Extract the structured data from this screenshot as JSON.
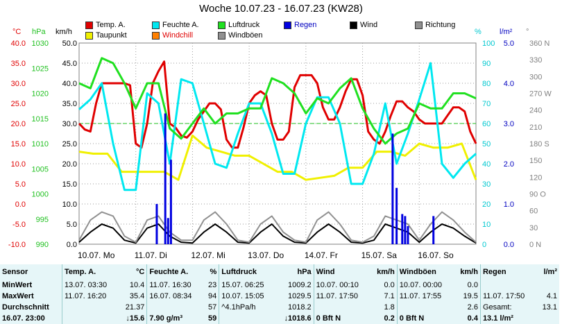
{
  "title": "Woche 10.07.23 - 16.07.23 (KW28)",
  "legend": [
    {
      "label": "Temp. A.",
      "color": "#e00000"
    },
    {
      "label": "Taupunkt",
      "color": "#f0f000"
    },
    {
      "label": "Feuchte A.",
      "color": "#00e8f0"
    },
    {
      "label": "Windchill",
      "color": "#ff8000"
    },
    {
      "label": "Luftdruck",
      "color": "#20e020"
    },
    {
      "label": "Windböen",
      "color": "#909090"
    },
    {
      "label": "Regen",
      "color": "#0000e0"
    },
    {
      "label": "Wind",
      "color": "#000000"
    },
    {
      "label": "Richtung",
      "color": "#909090"
    }
  ],
  "units": {
    "temp": "°C",
    "pressure": "hPa",
    "wind": "km/h",
    "humidity": "%",
    "rain": "l/m²",
    "direction": "°"
  },
  "chart_data": {
    "type": "line",
    "title": "Woche 10.07.23 - 16.07.23 (KW28)",
    "x_ticks": [
      "10.07.",
      "11.07.",
      "12.07.",
      "13.07.",
      "14.07.",
      "15.07.",
      "16.07."
    ],
    "x_day_labels": [
      "Mo",
      "Di",
      "Mi",
      "Do",
      "Fr",
      "Sa",
      "So"
    ],
    "axes": {
      "temp": {
        "label": "°C",
        "ticks": [
          "40.0",
          "35.0",
          "30.0",
          "25.0",
          "20.0",
          "15.0",
          "10.0",
          "5.0",
          "0.0",
          "-5.0",
          "-10.0"
        ],
        "range": [
          -10,
          40
        ]
      },
      "pressure": {
        "label": "hPa",
        "ticks": [
          "1030",
          "1025",
          "1020",
          "1015",
          "1010",
          "1005",
          "1000",
          "995",
          "990"
        ],
        "range": [
          990,
          1030
        ]
      },
      "wind": {
        "label": "km/h",
        "ticks": [
          "50.0",
          "45.0",
          "40.0",
          "35.0",
          "30.0",
          "25.0",
          "20.0",
          "15.0",
          "10.0",
          "5.0",
          "0.0"
        ],
        "range": [
          0,
          50
        ]
      },
      "humidity": {
        "label": "%",
        "ticks": [
          "100",
          "90",
          "80",
          "70",
          "60",
          "50",
          "40",
          "30",
          "20",
          "10",
          "0"
        ],
        "range": [
          0,
          100
        ]
      },
      "rain": {
        "label": "l/m²",
        "ticks": [
          "5.0",
          "4.0",
          "3.0",
          "2.0",
          "1.0",
          "0.0"
        ],
        "range": [
          0,
          5
        ]
      },
      "direction": {
        "label": "°",
        "ticks": [
          "360 N",
          "330",
          "300",
          "270 W",
          "240",
          "210",
          "180 S",
          "150",
          "120",
          "90 O",
          "60",
          "30",
          "0 N"
        ],
        "range": [
          0,
          360
        ]
      }
    },
    "reference_line_temp": 20,
    "series": [
      {
        "name": "Temp. A.",
        "color": "#e00000",
        "axis": "temp",
        "x": [
          0,
          0.1,
          0.2,
          0.3,
          0.4,
          0.5,
          0.6,
          0.7,
          0.8,
          0.9,
          1.0,
          1.1,
          1.2,
          1.3,
          1.4,
          1.5,
          1.6,
          1.7,
          1.8,
          1.9,
          2.0,
          2.1,
          2.2,
          2.3,
          2.4,
          2.5,
          2.6,
          2.7,
          2.8,
          2.9,
          3.0,
          3.1,
          3.2,
          3.3,
          3.4,
          3.5,
          3.6,
          3.7,
          3.8,
          3.9,
          4.0,
          4.1,
          4.2,
          4.3,
          4.4,
          4.5,
          4.6,
          4.7,
          4.8,
          4.9,
          5.0,
          5.1,
          5.2,
          5.3,
          5.4,
          5.5,
          5.6,
          5.7,
          5.8,
          5.9,
          6.0,
          6.1,
          6.2,
          6.3,
          6.4,
          6.5,
          6.6,
          6.7,
          6.8,
          6.9,
          7.0
        ],
        "values": [
          20,
          18.5,
          18,
          25,
          30,
          30,
          30,
          30,
          30,
          29.5,
          15,
          14,
          20,
          30,
          33,
          35.4,
          20,
          19,
          17,
          16.5,
          18,
          21,
          23,
          25,
          25,
          23.5,
          16,
          14,
          14,
          19,
          25,
          27,
          28,
          27,
          20,
          16,
          16,
          18,
          29,
          32,
          32,
          32,
          30,
          24,
          21,
          21,
          24,
          28,
          31,
          31,
          27,
          18,
          16,
          15,
          18,
          22,
          25.5,
          25.5,
          24,
          23,
          21,
          20,
          20,
          20,
          20,
          22,
          24,
          24,
          23,
          18,
          15
        ]
      },
      {
        "name": "Taupunkt",
        "color": "#f0f000",
        "axis": "temp",
        "x": [
          0,
          0.25,
          0.5,
          0.75,
          1.0,
          1.25,
          1.5,
          1.75,
          2.0,
          2.25,
          2.5,
          2.75,
          3.0,
          3.25,
          3.5,
          3.75,
          4.0,
          4.25,
          4.5,
          4.75,
          5.0,
          5.25,
          5.5,
          5.75,
          6.0,
          6.25,
          6.5,
          6.75,
          7.0
        ],
        "values": [
          13,
          12.5,
          12.5,
          8,
          8,
          8,
          8,
          6,
          17,
          14,
          13,
          12,
          12,
          10,
          8,
          8,
          6,
          6.5,
          7,
          9,
          9,
          13,
          13,
          12,
          15,
          14,
          14,
          15,
          6
        ]
      },
      {
        "name": "Feuchte A.",
        "color": "#00e8f0",
        "axis": "humidity",
        "x": [
          0,
          0.2,
          0.4,
          0.6,
          0.8,
          1.0,
          1.2,
          1.4,
          1.6,
          1.8,
          2.0,
          2.2,
          2.4,
          2.6,
          2.8,
          3.0,
          3.2,
          3.4,
          3.6,
          3.8,
          4.0,
          4.2,
          4.4,
          4.6,
          4.8,
          5.0,
          5.2,
          5.4,
          5.6,
          5.8,
          6.0,
          6.2,
          6.4,
          6.6,
          6.8,
          7.0
        ],
        "values": [
          67,
          72,
          80,
          50,
          27,
          27,
          75,
          70,
          40,
          82,
          80,
          60,
          40,
          38,
          55,
          70,
          70,
          55,
          35,
          35,
          60,
          73,
          73,
          60,
          30,
          30,
          45,
          70,
          40,
          55,
          72,
          90,
          40,
          33,
          40,
          45
        ]
      },
      {
        "name": "Luftdruck",
        "color": "#20e020",
        "axis": "pressure",
        "x": [
          0,
          0.2,
          0.4,
          0.6,
          0.8,
          1.0,
          1.2,
          1.4,
          1.6,
          1.8,
          2.0,
          2.2,
          2.4,
          2.6,
          2.8,
          3.0,
          3.2,
          3.4,
          3.6,
          3.8,
          4.0,
          4.2,
          4.4,
          4.6,
          4.8,
          5.0,
          5.2,
          5.4,
          5.6,
          5.8,
          6.0,
          6.2,
          6.4,
          6.6,
          6.8,
          7.0
        ],
        "values": [
          1022,
          1021,
          1027,
          1026,
          1022,
          1017,
          1022,
          1022,
          1013,
          1011,
          1014,
          1017,
          1014,
          1016,
          1016,
          1017,
          1017,
          1023,
          1022,
          1020,
          1016,
          1019,
          1018,
          1021,
          1023,
          1017,
          1013,
          1010,
          1012,
          1013,
          1018,
          1017,
          1017,
          1020,
          1020,
          1019
        ]
      },
      {
        "name": "Wind",
        "color": "#000000",
        "axis": "wind",
        "x": [
          0,
          0.2,
          0.4,
          0.6,
          0.8,
          1.0,
          1.2,
          1.4,
          1.6,
          1.8,
          2.0,
          2.2,
          2.4,
          2.6,
          2.8,
          3.0,
          3.2,
          3.4,
          3.6,
          3.8,
          4.0,
          4.2,
          4.4,
          4.6,
          4.8,
          5.0,
          5.2,
          5.4,
          5.6,
          5.8,
          6.0,
          6.2,
          6.4,
          6.6,
          6.8,
          7.0
        ],
        "values": [
          0.5,
          3,
          5,
          4,
          1,
          0.3,
          4,
          5,
          2,
          0.5,
          0.3,
          3,
          5,
          3,
          0.5,
          0.3,
          3,
          5,
          2,
          0.5,
          0.3,
          3,
          5,
          3,
          0.5,
          0.3,
          1,
          5,
          4,
          3,
          0.5,
          3,
          5,
          4,
          2,
          0.3
        ]
      },
      {
        "name": "Windböen",
        "color": "#909090",
        "axis": "wind",
        "x": [
          0,
          0.2,
          0.4,
          0.6,
          0.8,
          1.0,
          1.2,
          1.4,
          1.6,
          1.8,
          2.0,
          2.2,
          2.4,
          2.6,
          2.8,
          3.0,
          3.2,
          3.4,
          3.6,
          3.8,
          4.0,
          4.2,
          4.4,
          4.6,
          4.8,
          5.0,
          5.2,
          5.4,
          5.6,
          5.8,
          6.0,
          6.2,
          6.4,
          6.6,
          6.8,
          7.0
        ],
        "values": [
          1,
          6,
          8,
          7,
          2,
          0.5,
          6,
          7,
          3,
          1,
          1,
          6,
          8,
          5,
          1,
          0.5,
          5,
          7,
          3,
          1,
          0.5,
          6,
          8,
          5,
          1,
          0.5,
          2,
          7,
          6,
          5,
          1,
          5,
          8,
          6,
          3,
          0.5
        ]
      },
      {
        "name": "Regen",
        "color": "#0000e0",
        "axis": "rain",
        "type": "bar",
        "x": [
          1.37,
          1.52,
          1.57,
          1.62,
          5.53,
          5.6,
          5.7,
          5.75,
          5.8,
          6.25
        ],
        "values": [
          1.0,
          3.25,
          0.65,
          2.1,
          2.75,
          1.4,
          0.75,
          0.7,
          0.45,
          0.7
        ]
      }
    ]
  },
  "stats": {
    "headers": [
      {
        "label": "Sensor",
        "unit": ""
      },
      {
        "label": "Temp. A.",
        "unit": "°C"
      },
      {
        "label": "Feuchte A.",
        "unit": "%"
      },
      {
        "label": "Luftdruck",
        "unit": "hPa"
      },
      {
        "label": "Wind",
        "unit": "km/h"
      },
      {
        "label": "Windböen",
        "unit": "km/h"
      },
      {
        "label": "Regen",
        "unit": "l/m²"
      }
    ],
    "rows": [
      {
        "label": "MinWert",
        "cells": [
          [
            "13.07.  03:30",
            "10.4"
          ],
          [
            "11.07.  16:30",
            "23"
          ],
          [
            "15.07.  06:25",
            "1009.2"
          ],
          [
            "10.07.  00:10",
            "0.0"
          ],
          [
            "10.07.  00:00",
            "0.0"
          ],
          [
            "",
            ""
          ]
        ]
      },
      {
        "label": "MaxWert",
        "cells": [
          [
            "11.07.  16:20",
            "35.4"
          ],
          [
            "16.07.  08:34",
            "94"
          ],
          [
            "10.07.  15:05",
            "1029.5"
          ],
          [
            "11.07.  17:50",
            "7.1"
          ],
          [
            "11.07.  17:55",
            "19.5"
          ],
          [
            "11.07.  17:50",
            "4.1"
          ]
        ]
      },
      {
        "label": "Durchschnitt",
        "cells": [
          [
            "",
            "21.37"
          ],
          [
            "",
            "57"
          ],
          [
            "^4.1hPa/h",
            "1018.2"
          ],
          [
            "",
            "1.8"
          ],
          [
            "",
            "2.6"
          ],
          [
            "Gesamt:",
            "13.1"
          ]
        ]
      },
      {
        "label": "16.07.  23:00",
        "cells": [
          [
            "",
            "↓15.6"
          ],
          [
            "7.90 g/m³",
            "59"
          ],
          [
            "",
            "↓1018.6"
          ],
          [
            "0 Bft N",
            "0.2"
          ],
          [
            "0 Bft N",
            "0.4"
          ],
          [
            "13.1 l/m²",
            ""
          ]
        ]
      }
    ]
  }
}
